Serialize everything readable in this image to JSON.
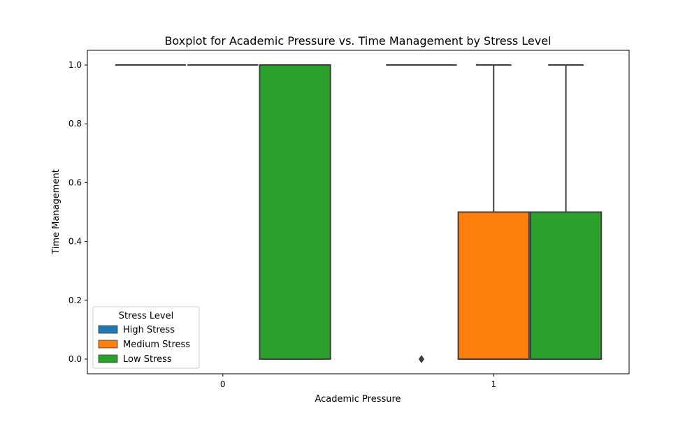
{
  "chart_data": {
    "type": "box",
    "title": "Boxplot for Academic Pressure vs. Time Management by Stress Level",
    "xlabel": "Academic Pressure",
    "ylabel": "Time Management",
    "categories": [
      "0",
      "1"
    ],
    "yticks": [
      "0.0",
      "0.2",
      "0.4",
      "0.6",
      "0.8",
      "1.0"
    ],
    "ylim": [
      -0.05,
      1.05
    ],
    "grid": false,
    "legend": {
      "title": "Stress Level",
      "placement": "lower-left"
    },
    "series": [
      {
        "name": "High Stress",
        "color": "#1f77b4",
        "boxes": [
          {
            "category": "0",
            "min": 1.0,
            "q1": 1.0,
            "median": 1.0,
            "q3": 1.0,
            "max": 1.0,
            "outliers": []
          },
          {
            "category": "1",
            "min": 1.0,
            "q1": 1.0,
            "median": 1.0,
            "q3": 1.0,
            "max": 1.0,
            "outliers": [
              0.0
            ]
          }
        ]
      },
      {
        "name": "Medium Stress",
        "color": "#ff7f0e",
        "boxes": [
          {
            "category": "0",
            "min": 1.0,
            "q1": 1.0,
            "median": 1.0,
            "q3": 1.0,
            "max": 1.0,
            "outliers": []
          },
          {
            "category": "1",
            "min": 0.0,
            "q1": 0.0,
            "median": 0.0,
            "q3": 0.5,
            "max": 1.0,
            "outliers": []
          }
        ]
      },
      {
        "name": "Low Stress",
        "color": "#2ca02c",
        "boxes": [
          {
            "category": "0",
            "min": 0.0,
            "q1": 0.0,
            "median": 1.0,
            "q3": 1.0,
            "max": 1.0,
            "outliers": []
          },
          {
            "category": "1",
            "min": 0.0,
            "q1": 0.0,
            "median": 0.0,
            "q3": 0.5,
            "max": 1.0,
            "outliers": []
          }
        ]
      }
    ]
  }
}
